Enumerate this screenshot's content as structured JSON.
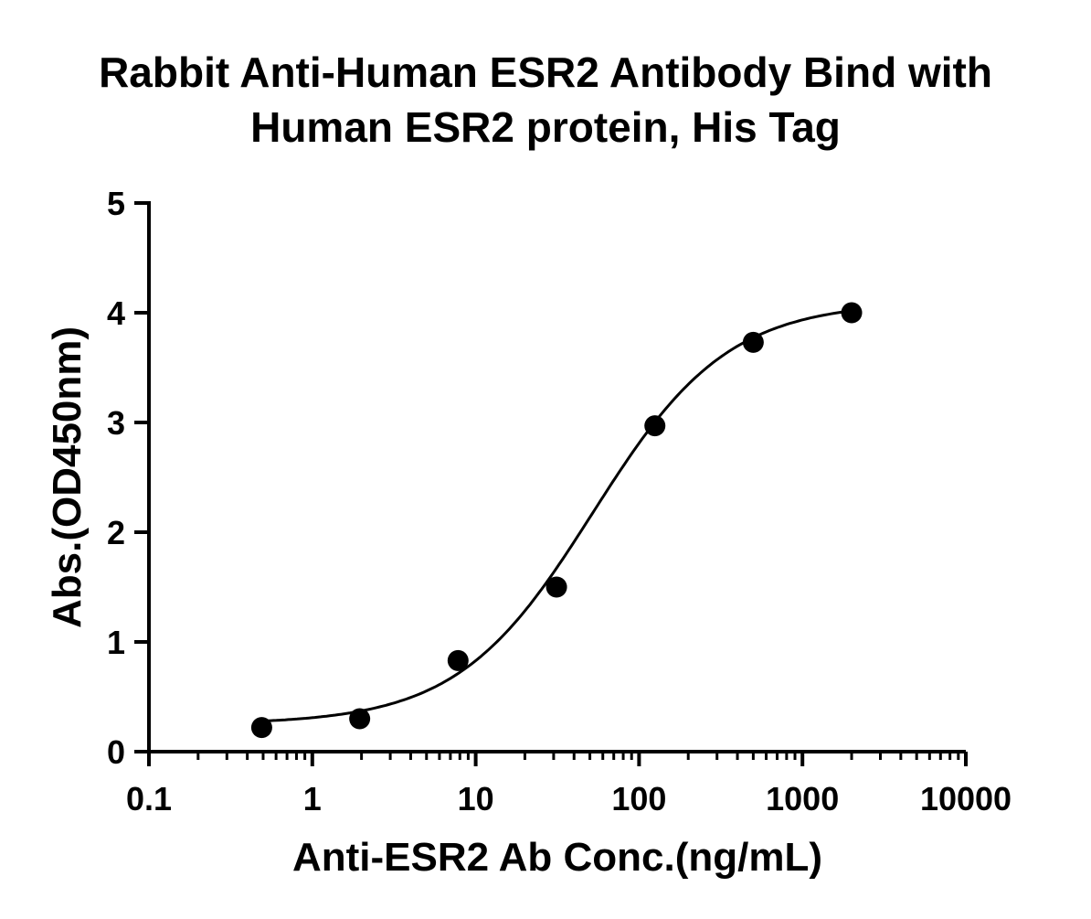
{
  "chart_data": {
    "type": "scatter",
    "title_lines": [
      "Rabbit Anti-Human ESR2 Antibody Bind with",
      "Human ESR2 protein, His Tag"
    ],
    "xlabel": "Anti-ESR2 Ab Conc.(ng/mL)",
    "ylabel": "Abs.(OD450nm)",
    "x_scale": "log",
    "xlim": [
      0.1,
      10000
    ],
    "ylim": [
      0,
      5
    ],
    "x_ticks": [
      0.1,
      1,
      10,
      100,
      1000,
      10000
    ],
    "x_tick_labels": [
      "0.1",
      "1",
      "10",
      "100",
      "1000",
      "10000"
    ],
    "y_ticks": [
      0,
      1,
      2,
      3,
      4,
      5
    ],
    "y_tick_labels": [
      "0",
      "1",
      "2",
      "3",
      "4",
      "5"
    ],
    "grid": false,
    "series": [
      {
        "x": [
          0.49,
          1.95,
          7.8,
          31.25,
          125,
          500,
          2000
        ],
        "y": [
          0.22,
          0.3,
          0.83,
          1.5,
          2.97,
          3.73,
          4.0
        ],
        "marker": "filled-circle",
        "color": "#000000",
        "fit": {
          "model": "four-parameter logistic",
          "bottom": 0.25,
          "top": 4.1,
          "ec50": 52,
          "hill": 1.05
        }
      }
    ]
  }
}
